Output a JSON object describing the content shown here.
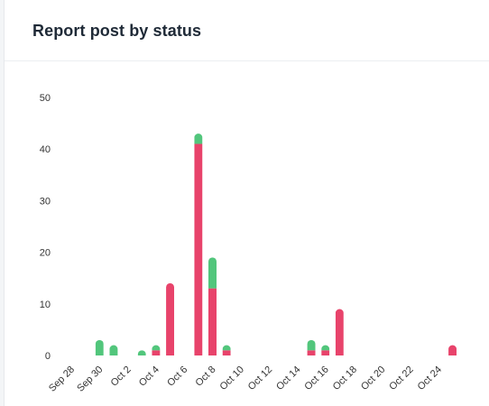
{
  "card": {
    "title": "Report post by status"
  },
  "chart_data": {
    "type": "bar",
    "stacked": true,
    "title": "Report post by status",
    "xlabel": "",
    "ylabel": "",
    "ylim": [
      0,
      50
    ],
    "yticks": [
      0,
      10,
      20,
      30,
      40,
      50
    ],
    "grid": false,
    "legend": "none",
    "categories": [
      "Sep 28",
      "Sep 29",
      "Sep 30",
      "Oct 1",
      "Oct 2",
      "Oct 3",
      "Oct 4",
      "Oct 5",
      "Oct 6",
      "Oct 7",
      "Oct 8",
      "Oct 9",
      "Oct 10",
      "Oct 11",
      "Oct 12",
      "Oct 13",
      "Oct 14",
      "Oct 15",
      "Oct 16",
      "Oct 17",
      "Oct 18",
      "Oct 19",
      "Oct 20",
      "Oct 21",
      "Oct 22",
      "Oct 23",
      "Oct 24",
      "Oct 25"
    ],
    "x_tick_labels": [
      "Sep 28",
      "Sep 30",
      "Oct 2",
      "Oct 4",
      "Oct 6",
      "Oct 8",
      "Oct 10",
      "Oct 12",
      "Oct 14",
      "Oct 16",
      "Oct 18",
      "Oct 20",
      "Oct 22",
      "Oct 24"
    ],
    "series": [
      {
        "color": "#e8436b",
        "values": [
          0,
          0,
          0,
          0,
          0,
          0,
          1,
          14,
          0,
          41,
          13,
          1,
          0,
          0,
          0,
          0,
          0,
          1,
          1,
          9,
          0,
          0,
          0,
          0,
          0,
          0,
          0,
          2
        ]
      },
      {
        "color": "#52c67c",
        "values": [
          0,
          0,
          3,
          2,
          0,
          1,
          1,
          0,
          0,
          2,
          6,
          1,
          0,
          0,
          0,
          0,
          0,
          2,
          1,
          0,
          0,
          0,
          0,
          0,
          0,
          0,
          0,
          0
        ]
      }
    ]
  }
}
